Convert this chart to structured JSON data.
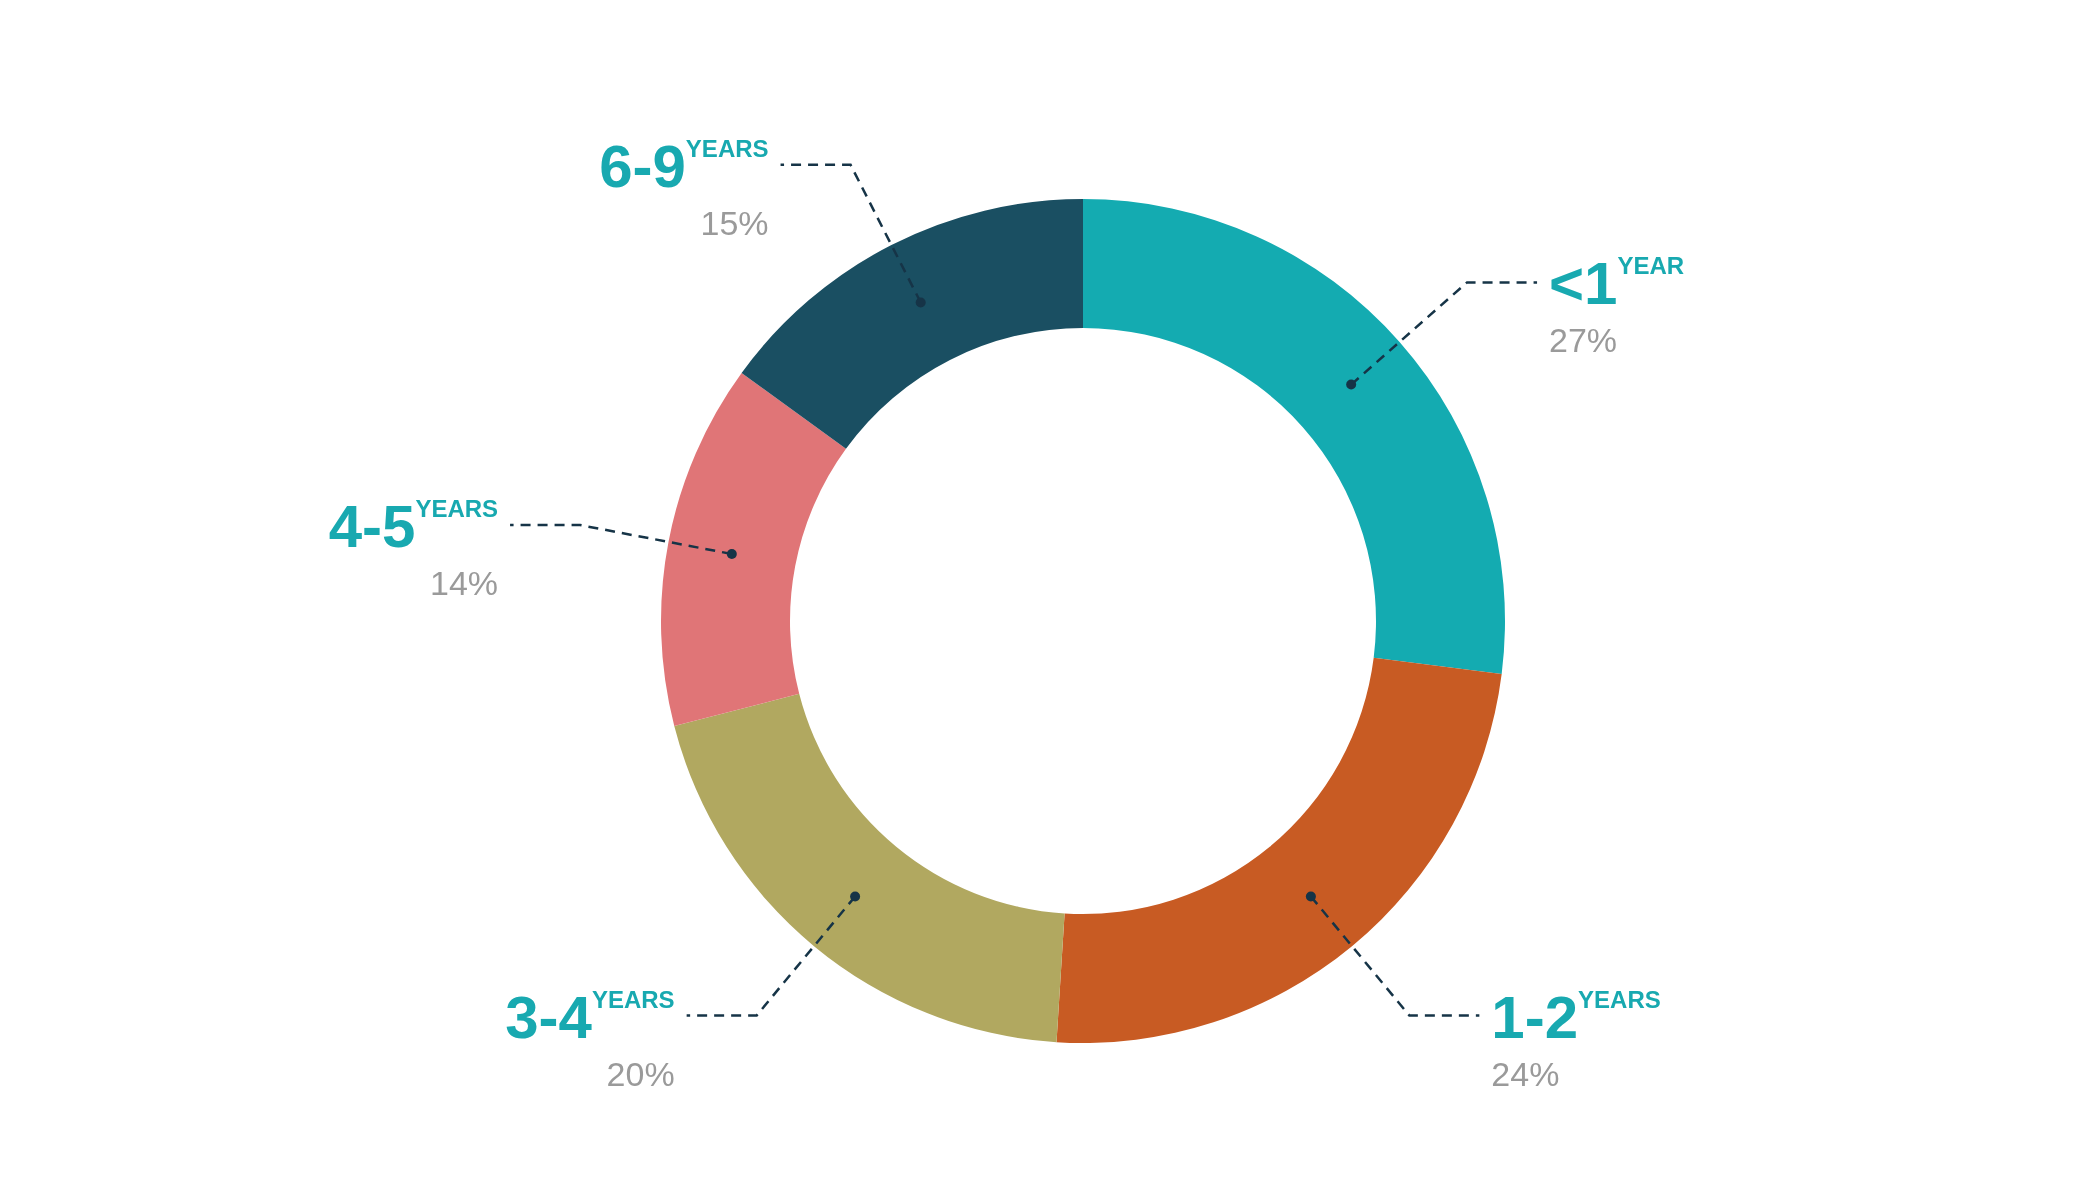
{
  "chart_data": {
    "type": "donut",
    "categories": [
      "<1$^{YEAR}$",
      "1-2$^{YEARS}$",
      "3-4$^{YEARS}$",
      "4-5$^{YEARS}$",
      "6-9$^{YEARS}$"
    ],
    "values": [
      27,
      24,
      20,
      14,
      15
    ],
    "value_labels": [
      "27%",
      "24%",
      "20%",
      "14%",
      "15%"
    ],
    "colors": [
      "#14abb1",
      "#c85b23",
      "#b1a860",
      "#e07577",
      "#1a4f62"
    ]
  }
}
